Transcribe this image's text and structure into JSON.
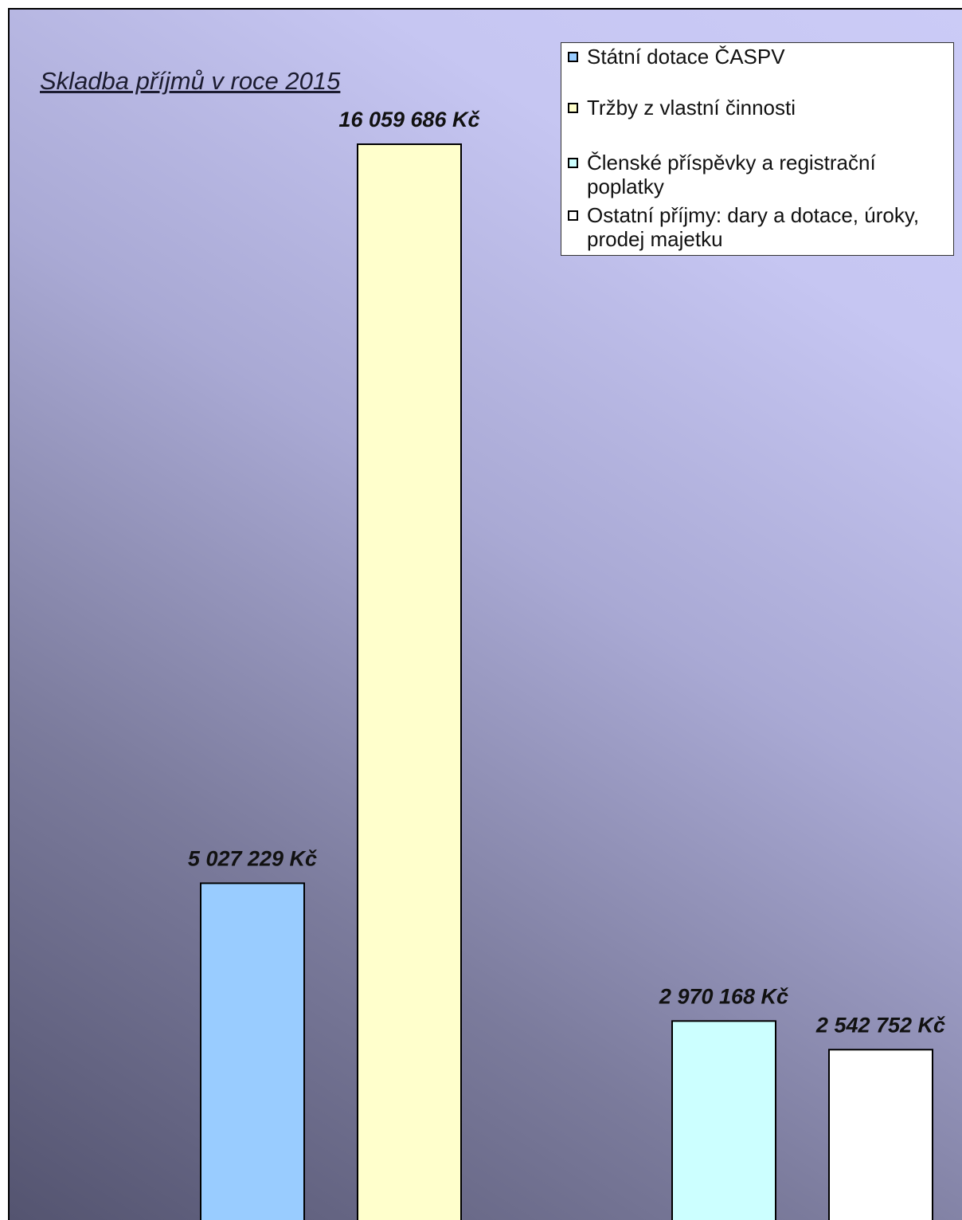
{
  "chart_data": {
    "type": "bar",
    "title": "Skladba příjmů v roce 2015",
    "categories": [
      "Státní dotace ČASPV",
      "Tržby z vlastní činnosti",
      "Členské příspěvky a registrační poplatky",
      "Ostatní příjmy: dary a dotace, úroky, prodej majetku"
    ],
    "values": [
      5027229,
      16059686,
      2970168,
      2542752
    ],
    "value_labels": [
      "5 027 229 Kč",
      "16 059 686 Kč",
      "2 970 168 Kč",
      "2 542 752 Kč"
    ],
    "colors": [
      "#99ccff",
      "#ffffcc",
      "#ccffff",
      "#ffffff"
    ],
    "legend_position": "top-right",
    "grid": false
  }
}
